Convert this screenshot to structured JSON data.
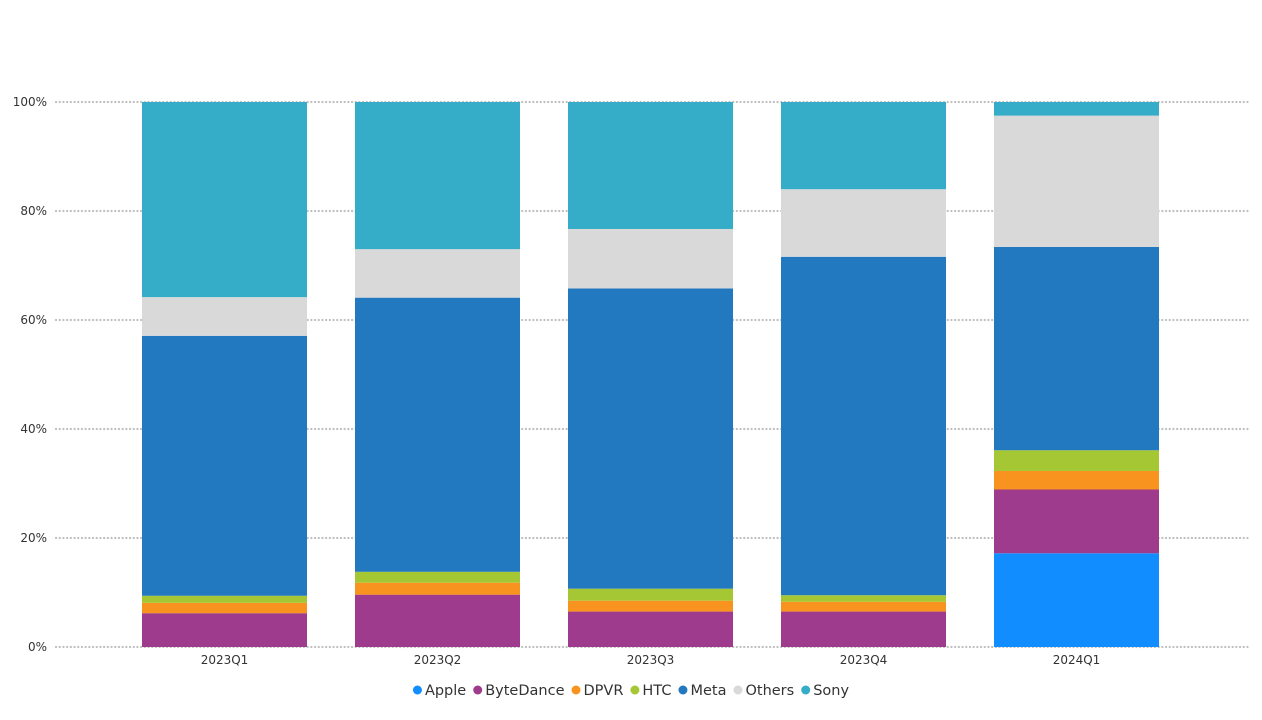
{
  "chart_data": {
    "type": "bar",
    "stacked": true,
    "normalized_percent": true,
    "categories": [
      "2023Q1",
      "2023Q2",
      "2023Q3",
      "2023Q4",
      "2024Q1"
    ],
    "series": [
      {
        "name": "Apple",
        "color": "#118DFF",
        "values": [
          0,
          0,
          0,
          0,
          17.2
        ]
      },
      {
        "name": "ByteDance",
        "color": "#9E3B8C",
        "values": [
          6.2,
          9.6,
          6.5,
          6.5,
          11.7
        ]
      },
      {
        "name": "DPVR",
        "color": "#F7931E",
        "values": [
          1.9,
          2.2,
          2.0,
          1.8,
          3.4
        ]
      },
      {
        "name": "HTC",
        "color": "#A6C734",
        "values": [
          1.3,
          2.0,
          2.2,
          1.2,
          3.8
        ]
      },
      {
        "name": "Meta",
        "color": "#2379BF",
        "values": [
          47.7,
          50.3,
          55.1,
          62.1,
          37.3
        ]
      },
      {
        "name": "Others",
        "color": "#D9D9D9",
        "values": [
          7.1,
          8.9,
          10.9,
          12.4,
          24.1
        ]
      },
      {
        "name": "Sony",
        "color": "#36ADC8",
        "values": [
          35.8,
          27.0,
          23.3,
          16.0,
          2.5
        ]
      }
    ],
    "y_ticks": [
      "0%",
      "20%",
      "40%",
      "60%",
      "80%",
      "100%"
    ],
    "ylim": [
      0,
      100
    ],
    "grid": true,
    "legend_position": "bottom-center"
  }
}
